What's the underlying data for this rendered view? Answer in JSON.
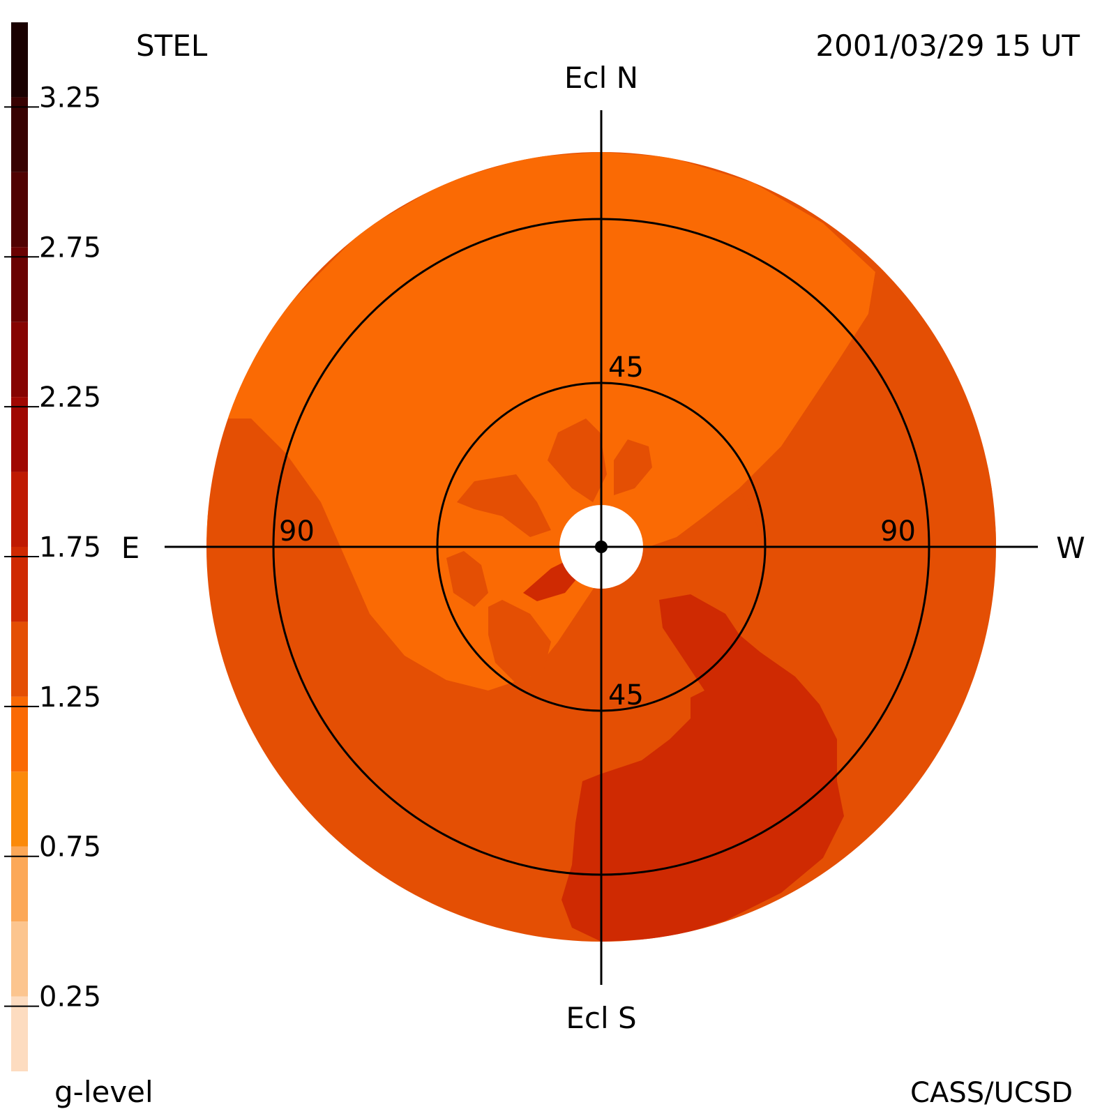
{
  "header": {
    "instrument": "STEL",
    "timestamp": "2001/03/29 15 UT"
  },
  "footer": {
    "colorbar_label": "g-level",
    "credit": "CASS/UCSD"
  },
  "colorbar": {
    "ticks": [
      "0.25",
      "0.75",
      "1.25",
      "1.75",
      "2.25",
      "2.75",
      "3.25"
    ],
    "tick_values": [
      0.25,
      0.75,
      1.25,
      1.75,
      2.25,
      2.75,
      3.25
    ],
    "range": [
      0.0,
      3.5
    ],
    "levels": [
      {
        "from": 0.0,
        "to": 0.25,
        "color": "#fddcc0"
      },
      {
        "from": 0.25,
        "to": 0.5,
        "color": "#fcc58f"
      },
      {
        "from": 0.5,
        "to": 0.75,
        "color": "#fca858"
      },
      {
        "from": 0.75,
        "to": 1.0,
        "color": "#fb8a0a"
      },
      {
        "from": 1.0,
        "to": 1.25,
        "color": "#fa6a04"
      },
      {
        "from": 1.25,
        "to": 1.5,
        "color": "#e44f04"
      },
      {
        "from": 1.5,
        "to": 1.75,
        "color": "#cf2a02"
      },
      {
        "from": 1.75,
        "to": 2.0,
        "color": "#bf1a02"
      },
      {
        "from": 2.0,
        "to": 2.25,
        "color": "#a00802"
      },
      {
        "from": 2.25,
        "to": 2.5,
        "color": "#860402"
      },
      {
        "from": 2.5,
        "to": 2.75,
        "color": "#6a0202"
      },
      {
        "from": 2.75,
        "to": 3.0,
        "color": "#500202"
      },
      {
        "from": 3.0,
        "to": 3.25,
        "color": "#380202"
      },
      {
        "from": 3.25,
        "to": 3.5,
        "color": "#1a0101"
      }
    ]
  },
  "chart_data": {
    "type": "heatmap",
    "projection": "fisheye sky map centered on Sun",
    "axes": {
      "north": "Ecl N",
      "south": "Ecl S",
      "east": "E",
      "west": "W"
    },
    "elongation_rings": [
      {
        "value": 45,
        "labels": [
          "45",
          "45"
        ]
      },
      {
        "value": 90,
        "labels": [
          "90",
          "90"
        ]
      }
    ],
    "map_outer_elongation": 112,
    "occulter_elongation": 12,
    "regions": [
      {
        "description": "background disk",
        "g_level": 1.3,
        "color": "#e44f04"
      },
      {
        "description": "north / inner enhanced",
        "g_level": 1.1,
        "color": "#fa6a04"
      },
      {
        "description": "southwest enhancement",
        "g_level": 1.6,
        "color": "#cf2a02"
      }
    ]
  }
}
